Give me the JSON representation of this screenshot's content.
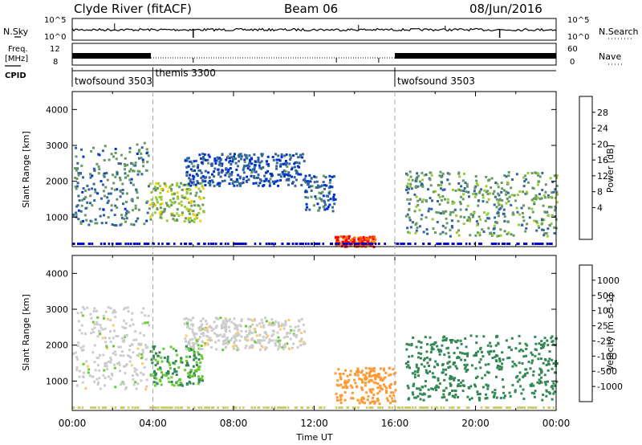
{
  "header": {
    "station": "Clyde River (fitACF)",
    "beam": "Beam 06",
    "date": "08/Jun/2016"
  },
  "top_panels": {
    "nsky_label": "N.Sky",
    "nsky_tick_top": "10^5",
    "nsky_tick_bottom": "10^0",
    "nsearch_label": "N.Search",
    "nsearch_tick_top": "10^5",
    "nsearch_tick_bottom": "10^0",
    "freq_label": "Freq.",
    "freq_unit": "[MHz]",
    "freq_ticks": [
      "12",
      "8"
    ],
    "nave_label": "Nave",
    "nave_ticks": [
      "60",
      "0"
    ],
    "cpid_label": "CPID"
  },
  "cpid_segments": [
    {
      "label": "twofsound 3503",
      "start": "00:00"
    },
    {
      "label": "themis 3300",
      "start": "04:00"
    },
    {
      "label": "twofsound 3503",
      "start": "16:00"
    }
  ],
  "power_colorbar": {
    "label": "Power [dB]",
    "ticks": [
      "28",
      "24",
      "20",
      "16",
      "12",
      "8",
      "4"
    ],
    "colors": [
      "#ff0000",
      "#ff6600",
      "#ff9900",
      "#ffcc00",
      "#99cc33",
      "#669966",
      "#336699",
      "#0033cc",
      "#0000ff"
    ]
  },
  "velocity_colorbar": {
    "label": "Velocity [m s^-1]",
    "ticks": [
      "1000",
      "500",
      "100",
      "25",
      "-25",
      "-100",
      "-500",
      "-1000"
    ],
    "colors": [
      "#3333cc",
      "#3366aa",
      "#338855",
      "#66cc33",
      "#cccccc",
      "#ffcc66",
      "#ff9933",
      "#ff6600",
      "#ff0000"
    ]
  },
  "axes": {
    "ylabel": "Slant Range [km]",
    "xlabel": "Time UT",
    "y_ticks": [
      "4000",
      "3000",
      "2000",
      "1000"
    ],
    "x_ticks": [
      "00:00",
      "04:00",
      "08:00",
      "12:00",
      "16:00",
      "20:00",
      "00:00"
    ]
  },
  "chart_data": [
    {
      "type": "heatmap",
      "title": "",
      "quantity": "Power [dB]",
      "xlabel": "",
      "ylabel": "Slant Range [km]",
      "x_range_hours": [
        0,
        24
      ],
      "ylim": [
        180,
        4500
      ],
      "scatter_regions": [
        {
          "t0": 0.0,
          "t1": 3.8,
          "r0": 800,
          "r1": 3100,
          "v": 9
        },
        {
          "t0": 3.8,
          "t1": 6.5,
          "r0": 900,
          "r1": 2000,
          "v": 14
        },
        {
          "t0": 5.5,
          "t1": 11.5,
          "r0": 1900,
          "r1": 2800,
          "v": 6
        },
        {
          "t0": 11.5,
          "t1": 13.0,
          "r0": 1200,
          "r1": 2200,
          "v": 7
        },
        {
          "t0": 13.0,
          "t1": 15.0,
          "r0": 200,
          "r1": 500,
          "v": 28
        },
        {
          "t0": 16.5,
          "t1": 24.0,
          "r0": 500,
          "r1": 2300,
          "v": 11
        }
      ]
    },
    {
      "type": "heatmap",
      "title": "",
      "quantity": "Velocity [m s^-1]",
      "xlabel": "Time UT",
      "ylabel": "Slant Range [km]",
      "x_range_hours": [
        0,
        24
      ],
      "ylim": [
        180,
        4500
      ],
      "scatter_regions": [
        {
          "t0": 0.0,
          "t1": 3.8,
          "r0": 800,
          "r1": 3100,
          "v": 0
        },
        {
          "t0": 3.8,
          "t1": 6.5,
          "r0": 900,
          "r1": 2000,
          "v": 100
        },
        {
          "t0": 5.5,
          "t1": 11.5,
          "r0": 1900,
          "r1": 2800,
          "v": 0
        },
        {
          "t0": 13.0,
          "t1": 16.0,
          "r0": 400,
          "r1": 1400,
          "v": -300
        },
        {
          "t0": 16.5,
          "t1": 24.0,
          "r0": 500,
          "r1": 2300,
          "v": 200
        }
      ]
    }
  ]
}
